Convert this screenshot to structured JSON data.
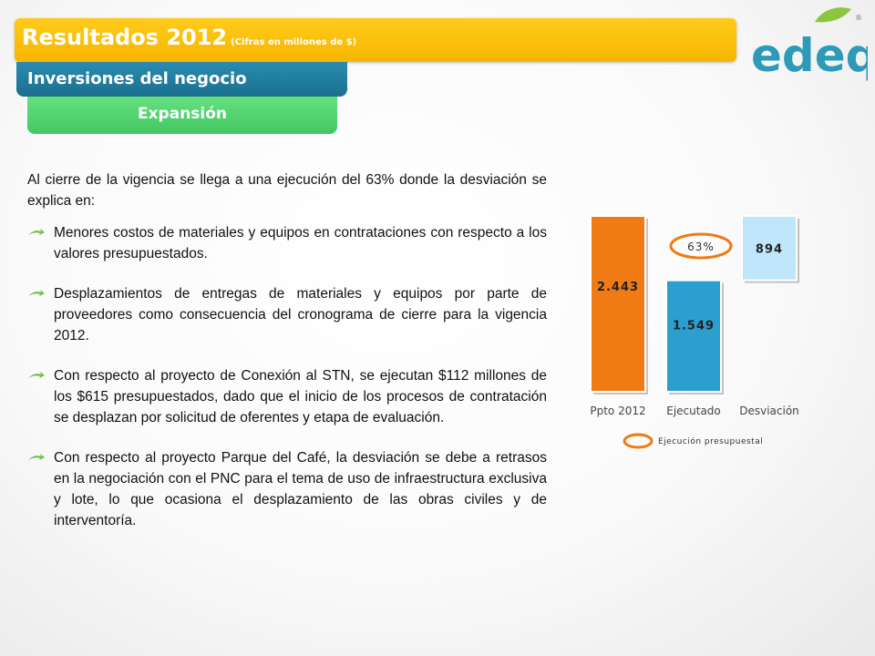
{
  "header": {
    "title": "Resultados 2012",
    "title_note": "(Cifras en millones de $)",
    "subtitle": "Inversiones del negocio",
    "section": "Expansión"
  },
  "logo": {
    "text": "edeq",
    "mark": "®",
    "colors": {
      "text": "#2d9bb8",
      "leaf": "#8cc63f"
    }
  },
  "body": {
    "intro": "Al cierre de la vigencia se llega a una ejecución del 63% donde la desviación se explica en:",
    "bullet_icon": "green-arrow-icon",
    "bullets": [
      "Menores costos de materiales y equipos en contrataciones con respecto a los valores presupuestados.",
      "Desplazamientos de entregas de materiales y equipos por parte de proveedores como consecuencia del cronograma de cierre para la vigencia 2012.",
      "Con respecto al proyecto de Conexión al STN, se ejecutan $112 millones de los $615 presupuestados, dado que el inicio de los procesos de contratación se desplazan por solicitud de oferentes y etapa de evaluación.",
      "Con respecto al proyecto Parque del Café, la desviación se debe a retrasos en la negociación con el PNC para el tema de uso de infraestructura exclusiva y lote, lo que ocasiona el desplazamiento de las obras civiles y de interventoría."
    ]
  },
  "chart_data": {
    "type": "bar",
    "subtype": "waterfall",
    "categories": [
      "Ppto 2012",
      "Ejecutado",
      "Desviación"
    ],
    "values": [
      2443,
      1549,
      894
    ],
    "data_labels": [
      "2.443",
      "1.549",
      "894"
    ],
    "bar_colors": [
      "#f07a13",
      "#2c9fd0",
      "#bfe6fa"
    ],
    "ratio_label": "63%",
    "legend": "Ejecución presupuestal",
    "legend_marker_color": "#f07a13",
    "grid": false
  }
}
